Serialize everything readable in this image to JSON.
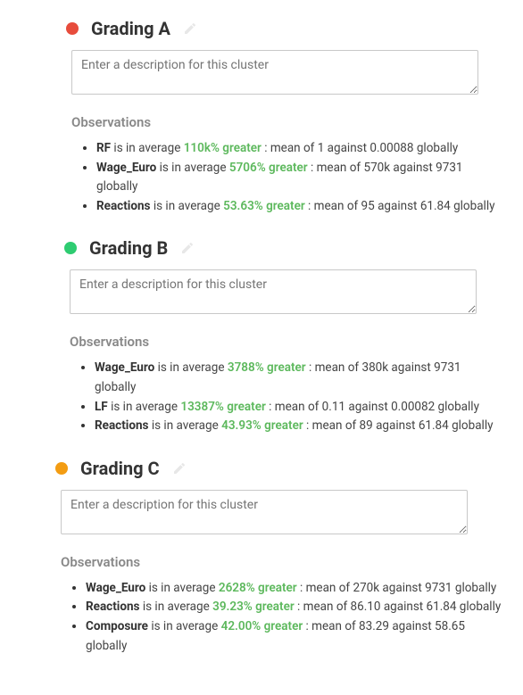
{
  "placeholder": "Enter a description for this cluster",
  "obs_heading": "Observations",
  "pencil_color": "#bbbbbb",
  "pct_colors": {
    "green": "#5cb85c"
  },
  "clusters": [
    {
      "title": "Grading A",
      "dot_color": "#e74c3c",
      "offset_class": "off-0",
      "observations": [
        {
          "feature": "RF",
          "mid": " is in average ",
          "pct": "110k% greater",
          "tail": " : mean of 1 against 0.00088 globally"
        },
        {
          "feature": "Wage_Euro",
          "mid": " is in average ",
          "pct": "5706% greater",
          "tail": " : mean of 570k against 9731 globally"
        },
        {
          "feature": "Reactions",
          "mid": " is in average ",
          "pct": "53.63% greater",
          "tail": " : mean of 95 against 61.84 globally"
        }
      ]
    },
    {
      "title": "Grading B",
      "dot_color": "#2ecc71",
      "offset_class": "off-1",
      "observations": [
        {
          "feature": "Wage_Euro",
          "mid": " is in average ",
          "pct": "3788% greater",
          "tail": " : mean of 380k against 9731 globally"
        },
        {
          "feature": "LF",
          "mid": " is in average ",
          "pct": "13387% greater",
          "tail": " : mean of 0.11 against 0.00082 globally"
        },
        {
          "feature": "Reactions",
          "mid": " is in average ",
          "pct": "43.93% greater",
          "tail": " : mean of 89 against 61.84 globally"
        }
      ]
    },
    {
      "title": "Grading C",
      "dot_color": "#f39c12",
      "offset_class": "off-2",
      "observations": [
        {
          "feature": "Wage_Euro",
          "mid": " is in average ",
          "pct": "2628% greater",
          "tail": " : mean of 270k against 9731 globally"
        },
        {
          "feature": "Reactions",
          "mid": " is in average ",
          "pct": "39.23% greater",
          "tail": " : mean of 86.10 against 61.84 globally"
        },
        {
          "feature": "Composure",
          "mid": " is in average ",
          "pct": "42.00% greater",
          "tail": " : mean of 83.29 against 58.65 globally"
        }
      ]
    }
  ]
}
